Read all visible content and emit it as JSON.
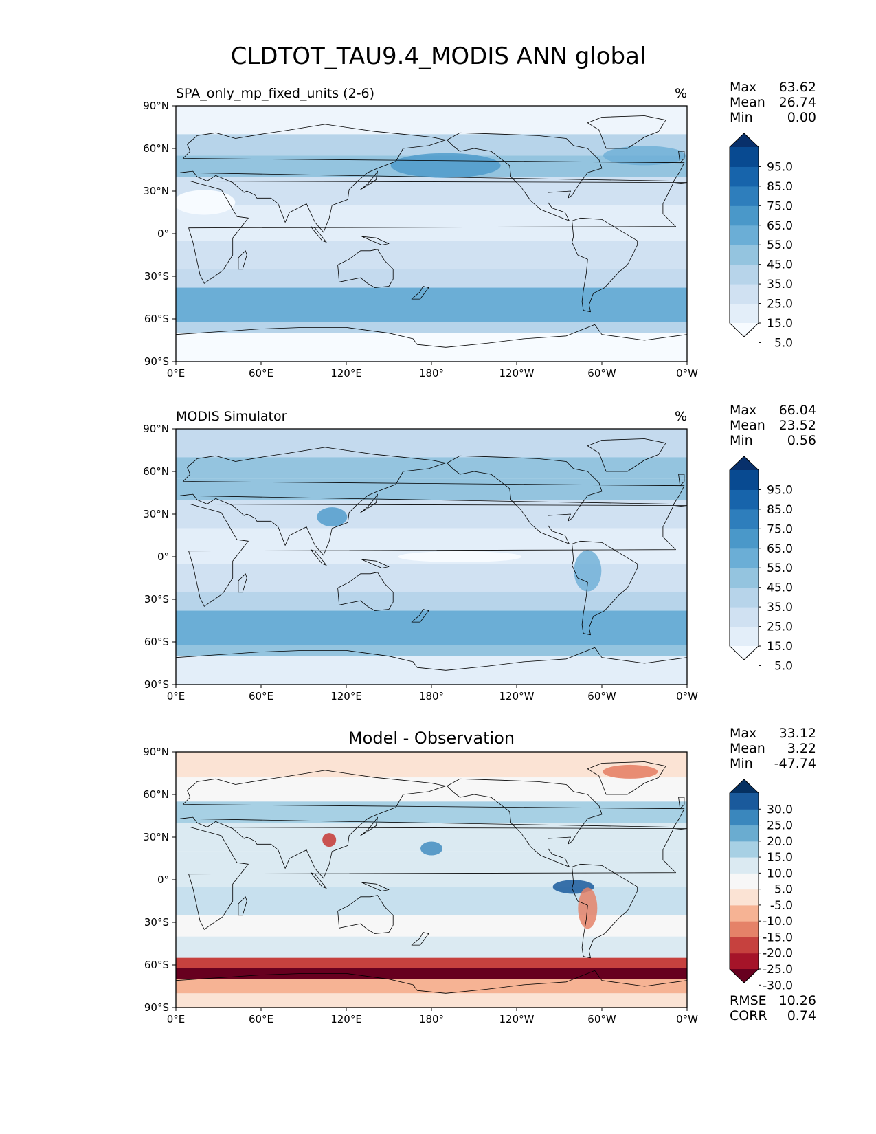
{
  "title": "CLDTOT_TAU9.4_MODIS ANN global",
  "lat_ticks": [
    "90°N",
    "60°N",
    "30°N",
    "0°",
    "30°S",
    "60°S",
    "90°S"
  ],
  "lon_ticks": [
    "0°E",
    "60°E",
    "120°E",
    "180°",
    "120°W",
    "60°W",
    "0°W"
  ],
  "panels": [
    {
      "title_left": "SPA_only_mp_fixed_units (2-6)",
      "title_right": "%",
      "title_center": "",
      "stats": [
        {
          "label": "Max",
          "value": "63.62"
        },
        {
          "label": "Mean",
          "value": "26.74"
        },
        {
          "label": "Min",
          "value": "0.00"
        }
      ],
      "colorbar_ticks": [
        "95.0",
        "85.0",
        "75.0",
        "65.0",
        "55.0",
        "45.0",
        "35.0",
        "25.0",
        "15.0",
        "5.0"
      ],
      "colorbar_colors": [
        "#f7fbff",
        "#e3eef9",
        "#d0e1f2",
        "#b7d4ea",
        "#94c4df",
        "#6baed6",
        "#4a98c9",
        "#2e7ebc",
        "#1764ab",
        "#084a91",
        "#08306b"
      ],
      "extra_stats": []
    },
    {
      "title_left": "MODIS Simulator",
      "title_right": "%",
      "title_center": "",
      "stats": [
        {
          "label": "Max",
          "value": "66.04"
        },
        {
          "label": "Mean",
          "value": "23.52"
        },
        {
          "label": "Min",
          "value": "0.56"
        }
      ],
      "colorbar_ticks": [
        "95.0",
        "85.0",
        "75.0",
        "65.0",
        "55.0",
        "45.0",
        "35.0",
        "25.0",
        "15.0",
        "5.0"
      ],
      "colorbar_colors": [
        "#f7fbff",
        "#e3eef9",
        "#d0e1f2",
        "#b7d4ea",
        "#94c4df",
        "#6baed6",
        "#4a98c9",
        "#2e7ebc",
        "#1764ab",
        "#084a91",
        "#08306b"
      ],
      "extra_stats": []
    },
    {
      "title_left": "",
      "title_right": "",
      "title_center": "Model - Observation",
      "stats": [
        {
          "label": "Max",
          "value": "33.12"
        },
        {
          "label": "Mean",
          "value": "3.22"
        },
        {
          "label": "Min",
          "value": "-47.74"
        }
      ],
      "colorbar_ticks": [
        "30.0",
        "25.0",
        "20.0",
        "15.0",
        "10.0",
        "5.0",
        "-5.0",
        "-10.0",
        "-15.0",
        "-20.0",
        "-25.0",
        "-30.0"
      ],
      "colorbar_colors": [
        "#67001f",
        "#a51429",
        "#c6413e",
        "#e58268",
        "#f6b394",
        "#fbe3d4",
        "#f7f7f7",
        "#dbeaf2",
        "#a7d0e4",
        "#6aacd0",
        "#3a87bd",
        "#1a5a9c",
        "#053061"
      ],
      "extra_stats": [
        {
          "label": "RMSE",
          "value": "10.26"
        },
        {
          "label": "CORR",
          "value": "0.74"
        }
      ]
    }
  ]
}
